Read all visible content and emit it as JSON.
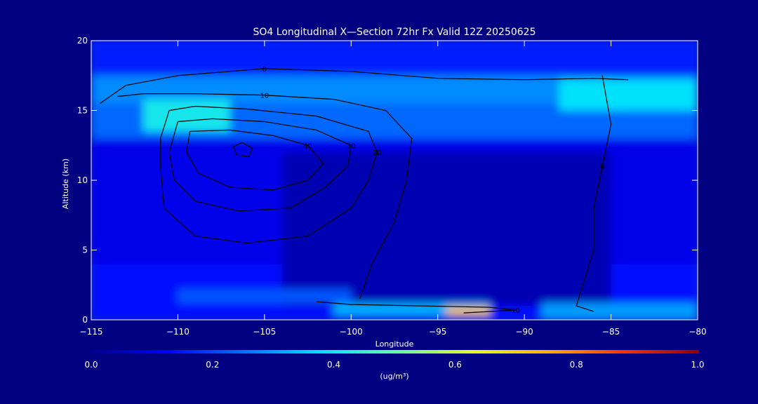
{
  "chart_data": {
    "type": "heatmap",
    "title": "SO4 Longitudinal X—Section 72hr  Fx Valid 12Z 20250625",
    "xlabel": "Longitude",
    "ylabel": "Altitude (km)",
    "xlim": [
      -115,
      -80
    ],
    "ylim": [
      0,
      20
    ],
    "x_ticks": [
      -115,
      -110,
      -105,
      -100,
      -95,
      -90,
      -85,
      -80
    ],
    "x_tick_labels": [
      "−115",
      "−110",
      "−105",
      "−100",
      "−95",
      "−90",
      "−85",
      "−80"
    ],
    "y_ticks": [
      0,
      5,
      10,
      15,
      20
    ],
    "y_tick_labels": [
      "0",
      "5",
      "10",
      "15",
      "20"
    ],
    "colorbar": {
      "min": 0.0,
      "max": 1.0,
      "ticks": [
        0.0,
        0.2,
        0.4,
        0.6,
        0.8,
        1.0
      ],
      "tick_labels": [
        "0.0",
        "0.2",
        "0.4",
        "0.6",
        "0.8",
        "1.0"
      ],
      "unit": "(ug/m³)",
      "colors": [
        "#00008f",
        "#0000ff",
        "#0070ff",
        "#00e0ff",
        "#60ffa0",
        "#e0ff20",
        "#ffb000",
        "#ff3000",
        "#900000"
      ]
    },
    "field": [
      {
        "x": -115,
        "y": 17.5,
        "x2": -80,
        "y2": 20,
        "value": 0.16
      },
      {
        "x": -115,
        "y": 15.5,
        "x2": -80,
        "y2": 17.5,
        "value": 0.28
      },
      {
        "x": -115,
        "y": 13,
        "x2": -80,
        "y2": 15.5,
        "value": 0.24
      },
      {
        "x": -115,
        "y": 4,
        "x2": -80,
        "y2": 13,
        "value": 0.1
      },
      {
        "x": -115,
        "y": 0,
        "x2": -80,
        "y2": 4,
        "value": 0.14
      },
      {
        "x": -104,
        "y": 1,
        "x2": -85,
        "y2": 12,
        "value": 0.04
      },
      {
        "x": -88,
        "y": 15,
        "x2": -80,
        "y2": 17.2,
        "value": 0.38
      },
      {
        "x": -112,
        "y": 13.5,
        "x2": -107,
        "y2": 15.8,
        "value": 0.4
      },
      {
        "x": -101,
        "y": 0.3,
        "x2": -92,
        "y2": 1.2,
        "value": 0.32
      },
      {
        "x": -94.5,
        "y": 0.3,
        "x2": -92,
        "y2": 0.9,
        "value": 0.72
      },
      {
        "x": -89,
        "y": 0,
        "x2": -80,
        "y2": 1.2,
        "value": 0.3
      },
      {
        "x": -110,
        "y": 1.2,
        "x2": -100,
        "y2": 2.2,
        "value": 0.22
      }
    ],
    "contours": [
      {
        "label": "0",
        "points": [
          [
            -114.5,
            15.5
          ],
          [
            -113,
            16.8
          ],
          [
            -110,
            17.5
          ],
          [
            -105,
            18
          ],
          [
            -100,
            17.8
          ],
          [
            -95,
            17.3
          ],
          [
            -90,
            17.2
          ],
          [
            -86,
            17.3
          ],
          [
            -84,
            17.2
          ]
        ]
      },
      {
        "label": "10",
        "points": [
          [
            -113.5,
            16
          ],
          [
            -112,
            16.2
          ],
          [
            -109,
            16.2
          ],
          [
            -105,
            16.1
          ],
          [
            -101,
            15.8
          ],
          [
            -98,
            15
          ],
          [
            -96.5,
            13
          ],
          [
            -96.8,
            10
          ],
          [
            -97.5,
            7
          ],
          [
            -98.8,
            4
          ],
          [
            -99.5,
            1.5
          ]
        ]
      },
      {
        "label": "20",
        "points": [
          [
            -110.5,
            15
          ],
          [
            -109,
            15.3
          ],
          [
            -106,
            15.1
          ],
          [
            -102,
            14.6
          ],
          [
            -99,
            13.5
          ],
          [
            -98.5,
            12
          ],
          [
            -99,
            10
          ],
          [
            -100,
            8
          ],
          [
            -102.5,
            6
          ],
          [
            -106,
            5.5
          ],
          [
            -109,
            6
          ],
          [
            -110.8,
            8
          ],
          [
            -111,
            11
          ],
          [
            -111,
            13
          ],
          [
            -110.5,
            15
          ]
        ]
      },
      {
        "label": "30",
        "points": [
          [
            -110,
            14.2
          ],
          [
            -108,
            14.4
          ],
          [
            -105,
            14.2
          ],
          [
            -102,
            13.6
          ],
          [
            -100,
            12.5
          ],
          [
            -100.2,
            11
          ],
          [
            -101.5,
            9.5
          ],
          [
            -103.5,
            8
          ],
          [
            -106.5,
            7.8
          ],
          [
            -109,
            8.5
          ],
          [
            -110.2,
            10
          ],
          [
            -110.5,
            12
          ],
          [
            -110,
            14.2
          ]
        ]
      },
      {
        "label": "40",
        "points": [
          [
            -109.3,
            13.5
          ],
          [
            -107,
            13.6
          ],
          [
            -104.5,
            13.2
          ],
          [
            -102.5,
            12.5
          ],
          [
            -101.6,
            11.2
          ],
          [
            -102.5,
            10
          ],
          [
            -104.5,
            9.3
          ],
          [
            -107,
            9.5
          ],
          [
            -108.8,
            10.5
          ],
          [
            -109.5,
            12
          ],
          [
            -109.3,
            13.5
          ]
        ]
      },
      {
        "label": "",
        "points": [
          [
            -106.3,
            12.7
          ],
          [
            -105.7,
            12.3
          ],
          [
            -105.9,
            11.7
          ],
          [
            -106.6,
            11.8
          ],
          [
            -106.8,
            12.4
          ],
          [
            -106.3,
            12.7
          ]
        ]
      },
      {
        "label": "10",
        "points": [
          [
            -93.5,
            0.5
          ],
          [
            -92,
            0.6
          ],
          [
            -90.5,
            0.7
          ],
          [
            -92,
            0.9
          ],
          [
            -96,
            1
          ],
          [
            -100,
            1.1
          ],
          [
            -102,
            1.3
          ]
        ]
      },
      {
        "label": "0",
        "points": [
          [
            -85.5,
            17.5
          ],
          [
            -85,
            14
          ],
          [
            -85.5,
            11
          ],
          [
            -86,
            8
          ],
          [
            -86,
            5
          ],
          [
            -86.5,
            3
          ],
          [
            -87,
            1
          ],
          [
            -86,
            0.6
          ]
        ]
      }
    ]
  }
}
